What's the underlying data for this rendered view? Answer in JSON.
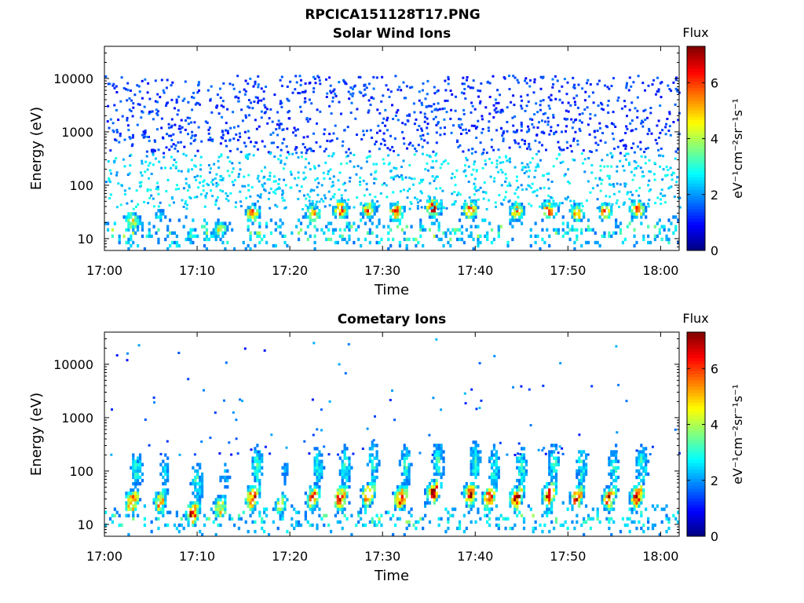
{
  "figure_title": "RPCICA151128T17.PNG",
  "chart_data": [
    {
      "type": "heatmap",
      "title": "Solar Wind Ions",
      "xlabel": "Time",
      "ylabel": "Energy (eV)",
      "x_ticks": [
        "17:00",
        "17:10",
        "17:20",
        "17:30",
        "17:40",
        "17:50",
        "18:00"
      ],
      "xlim": [
        "17:00",
        "18:02"
      ],
      "y_scale": "log",
      "y_ticks": [
        "10",
        "100",
        "1000",
        "10000"
      ],
      "ylim": [
        6,
        40000
      ],
      "colorbar": {
        "label": "Flux",
        "unit_label": "eV⁻¹cm⁻²sr⁻¹s⁻¹",
        "ticks": [
          "0",
          "2",
          "4",
          "6"
        ],
        "range": [
          0,
          7.3
        ],
        "colormap": "jet"
      },
      "bursts": [
        {
          "time": "17:03",
          "energy": 22,
          "flux": 5.3
        },
        {
          "time": "17:06",
          "energy": 28,
          "flux": 3.0
        },
        {
          "time": "17:09.5",
          "energy": 12,
          "flux": 3.5
        },
        {
          "time": "17:12.5",
          "energy": 15,
          "flux": 4.5
        },
        {
          "time": "17:16",
          "energy": 30,
          "flux": 5.6
        },
        {
          "time": "17:22.5",
          "energy": 30,
          "flux": 5.4
        },
        {
          "time": "17:25.5",
          "energy": 35,
          "flux": 6.5
        },
        {
          "time": "17:28.5",
          "energy": 35,
          "flux": 5.6
        },
        {
          "time": "17:31.5",
          "energy": 32,
          "flux": 6.0
        },
        {
          "time": "17:35.5",
          "energy": 38,
          "flux": 7.0
        },
        {
          "time": "17:39.5",
          "energy": 35,
          "flux": 6.6
        },
        {
          "time": "17:44.5",
          "energy": 32,
          "flux": 5.6
        },
        {
          "time": "17:48",
          "energy": 35,
          "flux": 6.3
        },
        {
          "time": "17:51",
          "energy": 30,
          "flux": 5.4
        },
        {
          "time": "17:54",
          "energy": 32,
          "flux": 5.4
        },
        {
          "time": "17:57.5",
          "energy": 35,
          "flux": 6.2
        }
      ]
    },
    {
      "type": "heatmap",
      "title": "Cometary Ions",
      "xlabel": "Time",
      "ylabel": "Energy (eV)",
      "x_ticks": [
        "17:00",
        "17:10",
        "17:20",
        "17:30",
        "17:40",
        "17:50",
        "18:00"
      ],
      "xlim": [
        "17:00",
        "18:02"
      ],
      "y_scale": "log",
      "y_ticks": [
        "10",
        "100",
        "1000",
        "10000"
      ],
      "ylim": [
        6,
        40000
      ],
      "colorbar": {
        "label": "Flux",
        "unit_label": "eV⁻¹cm⁻²sr⁻¹s⁻¹",
        "ticks": [
          "0",
          "2",
          "4",
          "6"
        ],
        "range": [
          0,
          7.3
        ],
        "colormap": "jet"
      },
      "bursts": [
        {
          "time": "17:03",
          "energy": 25,
          "flux": 6.5
        },
        {
          "time": "17:06",
          "energy": 25,
          "flux": 5.4
        },
        {
          "time": "17:09.5",
          "energy": 15,
          "flux": 6.8
        },
        {
          "time": "17:12.5",
          "energy": 20,
          "flux": 5.0
        },
        {
          "time": "17:16",
          "energy": 30,
          "flux": 6.8
        },
        {
          "time": "17:19",
          "energy": 22,
          "flux": 4.5
        },
        {
          "time": "17:22.5",
          "energy": 30,
          "flux": 6.3
        },
        {
          "time": "17:25.5",
          "energy": 30,
          "flux": 6.7
        },
        {
          "time": "17:28.5",
          "energy": 35,
          "flux": 6.6
        },
        {
          "time": "17:32",
          "energy": 30,
          "flux": 6.9
        },
        {
          "time": "17:35.5",
          "energy": 38,
          "flux": 7.0
        },
        {
          "time": "17:39.5",
          "energy": 35,
          "flux": 6.7
        },
        {
          "time": "17:41.5",
          "energy": 30,
          "flux": 6.8
        },
        {
          "time": "17:44.5",
          "energy": 30,
          "flux": 6.9
        },
        {
          "time": "17:48",
          "energy": 35,
          "flux": 6.8
        },
        {
          "time": "17:51",
          "energy": 30,
          "flux": 6.5
        },
        {
          "time": "17:54.5",
          "energy": 30,
          "flux": 6.6
        },
        {
          "time": "17:57.5",
          "energy": 32,
          "flux": 6.9
        }
      ]
    }
  ]
}
